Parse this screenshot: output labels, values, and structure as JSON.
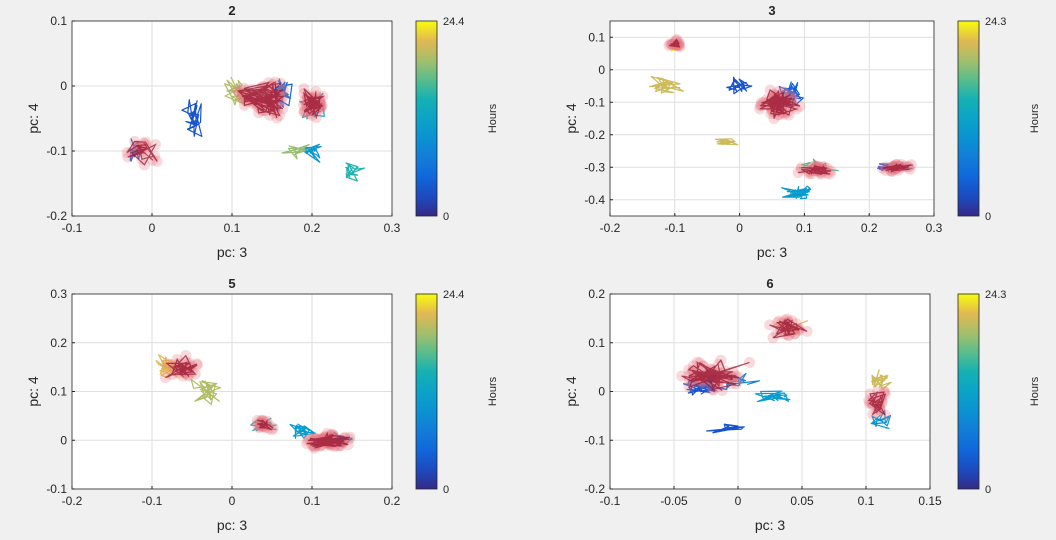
{
  "chart_data": [
    {
      "type": "line",
      "title": "2",
      "xlabel": "pc: 3",
      "ylabel": "pc: 4",
      "xlim": [
        -0.1,
        0.3
      ],
      "ylim": [
        -0.2,
        0.1
      ],
      "xticks": [
        -0.1,
        0,
        0.1,
        0.2,
        0.3
      ],
      "yticks": [
        -0.2,
        -0.1,
        0,
        0.1
      ],
      "xticklabels": [
        "-0.1",
        "0",
        "0.1",
        "0.2",
        "0.3"
      ],
      "yticklabels": [
        "-0.2",
        "-0.1",
        "0",
        "0.1"
      ],
      "grid": true,
      "colorbar": {
        "min": 0,
        "max": 24.4,
        "min_label": "0",
        "max_label": "24.4",
        "label": "Hours",
        "colormap": "parula"
      },
      "clusters": [
        {
          "x": -0.02,
          "y": -0.1,
          "sx": 0.02,
          "sy": 0.025,
          "hours": 4,
          "n": 28,
          "highlight": false
        },
        {
          "x": 0.05,
          "y": -0.05,
          "sx": 0.02,
          "sy": 0.04,
          "hours": 3,
          "n": 30,
          "highlight": false
        },
        {
          "x": 0.11,
          "y": -0.01,
          "sx": 0.025,
          "sy": 0.03,
          "hours": 20,
          "n": 40,
          "highlight": false
        },
        {
          "x": 0.16,
          "y": -0.01,
          "sx": 0.02,
          "sy": 0.03,
          "hours": 5,
          "n": 40,
          "highlight": false
        },
        {
          "x": 0.2,
          "y": -0.03,
          "sx": 0.02,
          "sy": 0.03,
          "hours": 12,
          "n": 40,
          "highlight": false
        },
        {
          "x": 0.2,
          "y": -0.1,
          "sx": 0.02,
          "sy": 0.02,
          "hours": 10,
          "n": 25,
          "highlight": false
        },
        {
          "x": 0.25,
          "y": -0.13,
          "sx": 0.02,
          "sy": 0.02,
          "hours": 15,
          "n": 25,
          "highlight": false
        },
        {
          "x": 0.18,
          "y": -0.1,
          "sx": 0.02,
          "sy": 0.02,
          "hours": 19,
          "n": 20,
          "highlight": false
        },
        {
          "x": -0.01,
          "y": -0.1,
          "sx": 0.03,
          "sy": 0.03,
          "hours": 2,
          "n": 22,
          "highlight": true
        },
        {
          "x": 0.14,
          "y": -0.02,
          "sx": 0.04,
          "sy": 0.035,
          "hours": 1,
          "n": 90,
          "highlight": true
        },
        {
          "x": 0.2,
          "y": -0.03,
          "sx": 0.02,
          "sy": 0.03,
          "hours": 1,
          "n": 60,
          "highlight": true
        }
      ]
    },
    {
      "type": "line",
      "title": "3",
      "xlabel": "pc: 3",
      "ylabel": "pc: 4",
      "xlim": [
        -0.2,
        0.3
      ],
      "ylim": [
        -0.45,
        0.15
      ],
      "xticks": [
        -0.2,
        -0.1,
        0,
        0.1,
        0.2,
        0.3
      ],
      "yticks": [
        -0.4,
        -0.3,
        -0.2,
        -0.1,
        0,
        0.1
      ],
      "xticklabels": [
        "-0.2",
        "-0.1",
        "0",
        "0.1",
        "0.2",
        "0.3"
      ],
      "yticklabels": [
        "-0.4",
        "-0.3",
        "-0.2",
        "-0.1",
        "0",
        "0.1"
      ],
      "grid": true,
      "colorbar": {
        "min": 0,
        "max": 24.3,
        "min_label": "0",
        "max_label": "24.3",
        "label": "Hours",
        "colormap": "parula"
      },
      "clusters": [
        {
          "x": -0.1,
          "y": 0.07,
          "sx": 0.015,
          "sy": 0.025,
          "hours": 24,
          "n": 22,
          "highlight": false
        },
        {
          "x": -0.12,
          "y": -0.05,
          "sx": 0.04,
          "sy": 0.04,
          "hours": 21,
          "n": 30,
          "highlight": false
        },
        {
          "x": -0.02,
          "y": -0.22,
          "sx": 0.03,
          "sy": 0.02,
          "hours": 21,
          "n": 20,
          "highlight": false
        },
        {
          "x": 0.0,
          "y": -0.05,
          "sx": 0.03,
          "sy": 0.04,
          "hours": 3,
          "n": 25,
          "highlight": false
        },
        {
          "x": 0.08,
          "y": -0.08,
          "sx": 0.03,
          "sy": 0.06,
          "hours": 4,
          "n": 40,
          "highlight": false
        },
        {
          "x": 0.09,
          "y": -0.38,
          "sx": 0.03,
          "sy": 0.03,
          "hours": 11,
          "n": 45,
          "highlight": false
        },
        {
          "x": 0.12,
          "y": -0.3,
          "sx": 0.04,
          "sy": 0.03,
          "hours": 17,
          "n": 30,
          "highlight": false
        },
        {
          "x": 0.24,
          "y": -0.3,
          "sx": 0.04,
          "sy": 0.02,
          "hours": 3,
          "n": 30,
          "highlight": false
        },
        {
          "x": -0.1,
          "y": 0.08,
          "sx": 0.012,
          "sy": 0.02,
          "hours": 1,
          "n": 18,
          "highlight": true
        },
        {
          "x": 0.06,
          "y": -0.1,
          "sx": 0.04,
          "sy": 0.06,
          "hours": 1,
          "n": 70,
          "highlight": true
        },
        {
          "x": 0.12,
          "y": -0.31,
          "sx": 0.035,
          "sy": 0.025,
          "hours": 1,
          "n": 35,
          "highlight": true
        },
        {
          "x": 0.24,
          "y": -0.3,
          "sx": 0.03,
          "sy": 0.02,
          "hours": 1,
          "n": 30,
          "highlight": true
        }
      ]
    },
    {
      "type": "line",
      "title": "5",
      "xlabel": "pc: 3",
      "ylabel": "pc: 4",
      "xlim": [
        -0.2,
        0.2
      ],
      "ylim": [
        -0.1,
        0.3
      ],
      "xticks": [
        -0.2,
        -0.1,
        0,
        0.1,
        0.2
      ],
      "yticks": [
        -0.1,
        0,
        0.1,
        0.2,
        0.3
      ],
      "xticklabels": [
        "-0.2",
        "-0.1",
        "0",
        "0.1",
        "0.2"
      ],
      "yticklabels": [
        "-0.1",
        "0",
        "0.1",
        "0.2",
        "0.3"
      ],
      "grid": true,
      "colorbar": {
        "min": 0,
        "max": 24.4,
        "min_label": "0",
        "max_label": "24.4",
        "label": "Hours",
        "colormap": "parula"
      },
      "clusters": [
        {
          "x": -0.08,
          "y": 0.15,
          "sx": 0.025,
          "sy": 0.035,
          "hours": 22,
          "n": 35,
          "highlight": false
        },
        {
          "x": -0.03,
          "y": 0.1,
          "sx": 0.025,
          "sy": 0.04,
          "hours": 20,
          "n": 35,
          "highlight": false
        },
        {
          "x": 0.04,
          "y": 0.03,
          "sx": 0.025,
          "sy": 0.02,
          "hours": 15,
          "n": 25,
          "highlight": false
        },
        {
          "x": 0.09,
          "y": 0.02,
          "sx": 0.025,
          "sy": 0.025,
          "hours": 11,
          "n": 30,
          "highlight": false
        },
        {
          "x": 0.13,
          "y": 0.0,
          "sx": 0.025,
          "sy": 0.02,
          "hours": 6,
          "n": 40,
          "highlight": false
        },
        {
          "x": -0.06,
          "y": 0.15,
          "sx": 0.03,
          "sy": 0.03,
          "hours": 1,
          "n": 35,
          "highlight": true
        },
        {
          "x": 0.04,
          "y": 0.03,
          "sx": 0.02,
          "sy": 0.015,
          "hours": 1,
          "n": 25,
          "highlight": true
        },
        {
          "x": 0.12,
          "y": 0.0,
          "sx": 0.035,
          "sy": 0.02,
          "hours": 1,
          "n": 70,
          "highlight": true
        }
      ]
    },
    {
      "type": "line",
      "title": "6",
      "xlabel": "pc: 3",
      "ylabel": "pc: 4",
      "xlim": [
        -0.1,
        0.15
      ],
      "ylim": [
        -0.2,
        0.2
      ],
      "xticks": [
        -0.1,
        -0.05,
        0,
        0.05,
        0.1,
        0.15
      ],
      "yticks": [
        -0.2,
        -0.1,
        0,
        0.1,
        0.2
      ],
      "xticklabels": [
        "-0.1",
        "-0.05",
        "0",
        "0.05",
        "0.1",
        "0.15"
      ],
      "yticklabels": [
        "-0.2",
        "-0.1",
        "0",
        "0.1",
        "0.2"
      ],
      "grid": true,
      "colorbar": {
        "min": 0,
        "max": 24.3,
        "min_label": "0",
        "max_label": "24.3",
        "label": "Hours",
        "colormap": "parula"
      },
      "clusters": [
        {
          "x": -0.03,
          "y": 0.02,
          "sx": 0.025,
          "sy": 0.04,
          "hours": 3,
          "n": 45,
          "highlight": false
        },
        {
          "x": 0.0,
          "y": 0.02,
          "sx": 0.02,
          "sy": 0.03,
          "hours": 8,
          "n": 25,
          "highlight": false
        },
        {
          "x": 0.03,
          "y": -0.01,
          "sx": 0.02,
          "sy": 0.02,
          "hours": 11,
          "n": 25,
          "highlight": false
        },
        {
          "x": 0.04,
          "y": 0.13,
          "sx": 0.02,
          "sy": 0.025,
          "hours": 22,
          "n": 35,
          "highlight": false
        },
        {
          "x": 0.11,
          "y": 0.02,
          "sx": 0.015,
          "sy": 0.03,
          "hours": 21,
          "n": 30,
          "highlight": false
        },
        {
          "x": 0.11,
          "y": -0.06,
          "sx": 0.012,
          "sy": 0.025,
          "hours": 10,
          "n": 20,
          "highlight": false
        },
        {
          "x": -0.01,
          "y": -0.07,
          "sx": 0.02,
          "sy": 0.02,
          "hours": 3,
          "n": 12,
          "highlight": false
        },
        {
          "x": -0.02,
          "y": 0.03,
          "sx": 0.035,
          "sy": 0.045,
          "hours": 1,
          "n": 70,
          "highlight": true
        },
        {
          "x": 0.04,
          "y": 0.13,
          "sx": 0.02,
          "sy": 0.025,
          "hours": 1,
          "n": 30,
          "highlight": true
        },
        {
          "x": 0.11,
          "y": -0.02,
          "sx": 0.012,
          "sy": 0.04,
          "hours": 1,
          "n": 25,
          "highlight": true
        }
      ]
    }
  ]
}
